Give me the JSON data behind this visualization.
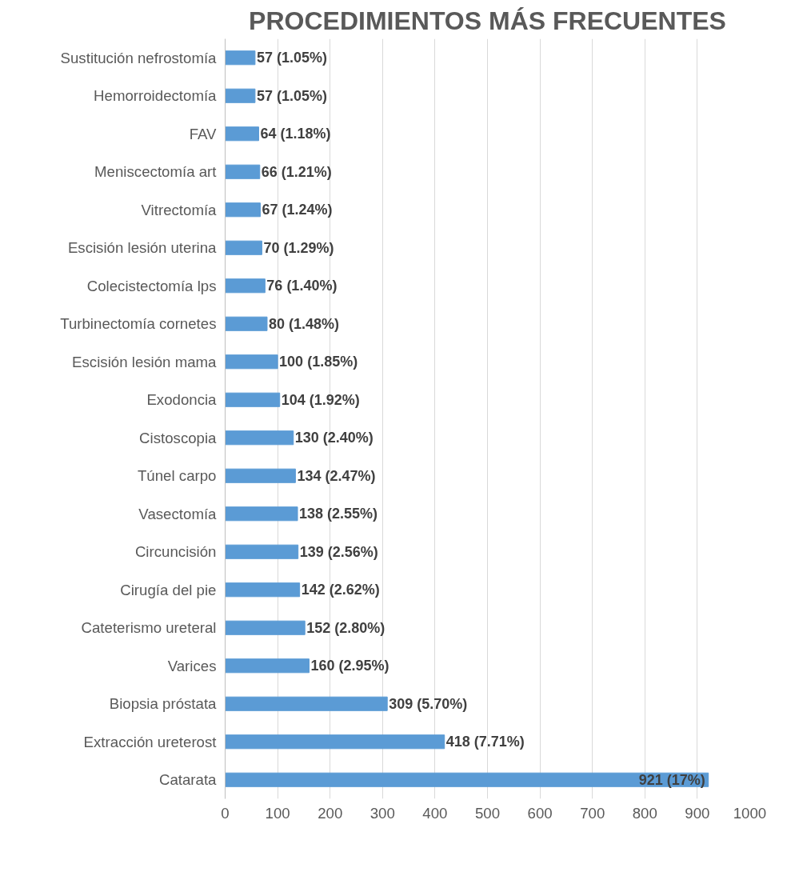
{
  "chart_data": {
    "type": "bar",
    "orientation": "horizontal",
    "title": "PROCEDIMIENTOS MÁS FRECUENTES",
    "categories": [
      "Sustitución nefrostomía",
      "Hemorroidectomía",
      "FAV",
      "Meniscectomía art",
      "Vitrectomía",
      "Escisión lesión uterina",
      "Colecistectomía lps",
      "Turbinectomía cornetes",
      "Escisión lesión mama",
      "Exodoncia",
      "Cistoscopia",
      "Túnel carpo",
      "Vasectomía",
      "Circuncisión",
      "Cirugía del pie",
      "Cateterismo ureteral",
      "Varices",
      "Biopsia próstata",
      "Extracción ureterost",
      "Catarata"
    ],
    "values": [
      57,
      57,
      64,
      66,
      67,
      70,
      76,
      80,
      100,
      104,
      130,
      134,
      138,
      139,
      142,
      152,
      160,
      309,
      418,
      921
    ],
    "value_labels": [
      "57 (1.05%)",
      "57 (1.05%)",
      "64 (1.18%)",
      "66 (1.21%)",
      "67 (1.24%)",
      "70 (1.29%)",
      "76 (1.40%)",
      "80 (1.48%)",
      "100 (1.85%)",
      "104 (1.92%)",
      "130 (2.40%)",
      "134 (2.47%)",
      "138 (2.55%)",
      "139 (2.56%)",
      "142 (2.62%)",
      "152 (2.80%)",
      "160 (2.95%)",
      "309 (5.70%)",
      "418 (7.71%)",
      "921 (17%)"
    ],
    "color": "#5b9bd5",
    "xlim": [
      0,
      1000
    ],
    "xticks": [
      0,
      100,
      200,
      300,
      400,
      500,
      600,
      700,
      800,
      900,
      1000
    ],
    "grid": "x"
  }
}
